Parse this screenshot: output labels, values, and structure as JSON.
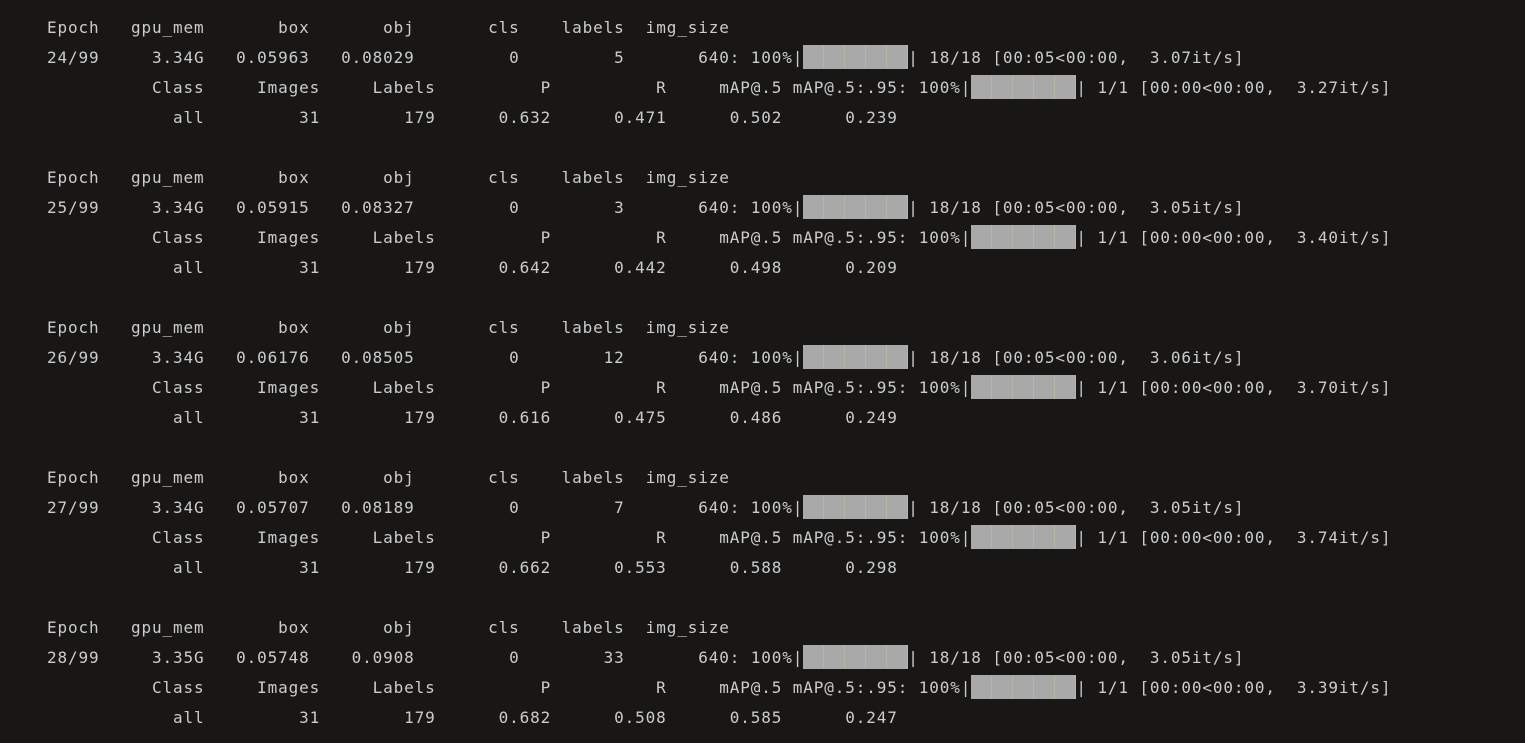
{
  "colors": {
    "background": "#181716",
    "text": "#cccccc",
    "progress_bar": "#a9a9a9"
  },
  "train_header": [
    "Epoch",
    "gpu_mem",
    "box",
    "obj",
    "cls",
    "labels",
    "img_size"
  ],
  "val_header": [
    "Class",
    "Images",
    "Labels",
    "P",
    "R",
    "mAP@.5",
    "mAP@.5:.95"
  ],
  "epochs": [
    {
      "epoch": "24/99",
      "gpu_mem": "3.34G",
      "box": "0.05963",
      "obj": "0.08029",
      "cls": "0",
      "labels": "5",
      "img_size": "640",
      "train_progress": {
        "percent": "100%",
        "count": "18/18",
        "timing": "[00:05<00:00,  3.07it/s]"
      },
      "val_progress": {
        "percent": "100%",
        "count": "1/1",
        "timing": "[00:00<00:00,  3.27it/s]"
      },
      "val": {
        "class": "all",
        "images": "31",
        "labels": "179",
        "p": "0.632",
        "r": "0.471",
        "map50": "0.502",
        "map5095": "0.239"
      }
    },
    {
      "epoch": "25/99",
      "gpu_mem": "3.34G",
      "box": "0.05915",
      "obj": "0.08327",
      "cls": "0",
      "labels": "3",
      "img_size": "640",
      "train_progress": {
        "percent": "100%",
        "count": "18/18",
        "timing": "[00:05<00:00,  3.05it/s]"
      },
      "val_progress": {
        "percent": "100%",
        "count": "1/1",
        "timing": "[00:00<00:00,  3.40it/s]"
      },
      "val": {
        "class": "all",
        "images": "31",
        "labels": "179",
        "p": "0.642",
        "r": "0.442",
        "map50": "0.498",
        "map5095": "0.209"
      }
    },
    {
      "epoch": "26/99",
      "gpu_mem": "3.34G",
      "box": "0.06176",
      "obj": "0.08505",
      "cls": "0",
      "labels": "12",
      "img_size": "640",
      "train_progress": {
        "percent": "100%",
        "count": "18/18",
        "timing": "[00:05<00:00,  3.06it/s]"
      },
      "val_progress": {
        "percent": "100%",
        "count": "1/1",
        "timing": "[00:00<00:00,  3.70it/s]"
      },
      "val": {
        "class": "all",
        "images": "31",
        "labels": "179",
        "p": "0.616",
        "r": "0.475",
        "map50": "0.486",
        "map5095": "0.249"
      }
    },
    {
      "epoch": "27/99",
      "gpu_mem": "3.34G",
      "box": "0.05707",
      "obj": "0.08189",
      "cls": "0",
      "labels": "7",
      "img_size": "640",
      "train_progress": {
        "percent": "100%",
        "count": "18/18",
        "timing": "[00:05<00:00,  3.05it/s]"
      },
      "val_progress": {
        "percent": "100%",
        "count": "1/1",
        "timing": "[00:00<00:00,  3.74it/s]"
      },
      "val": {
        "class": "all",
        "images": "31",
        "labels": "179",
        "p": "0.662",
        "r": "0.553",
        "map50": "0.588",
        "map5095": "0.298"
      }
    },
    {
      "epoch": "28/99",
      "gpu_mem": "3.35G",
      "box": "0.05748",
      "obj": "0.0908",
      "cls": "0",
      "labels": "33",
      "img_size": "640",
      "train_progress": {
        "percent": "100%",
        "count": "18/18",
        "timing": "[00:05<00:00,  3.05it/s]"
      },
      "val_progress": {
        "percent": "100%",
        "count": "1/1",
        "timing": "[00:00<00:00,  3.39it/s]"
      },
      "val": {
        "class": "all",
        "images": "31",
        "labels": "179",
        "p": "0.682",
        "r": "0.508",
        "map50": "0.585",
        "map5095": "0.247"
      }
    }
  ]
}
